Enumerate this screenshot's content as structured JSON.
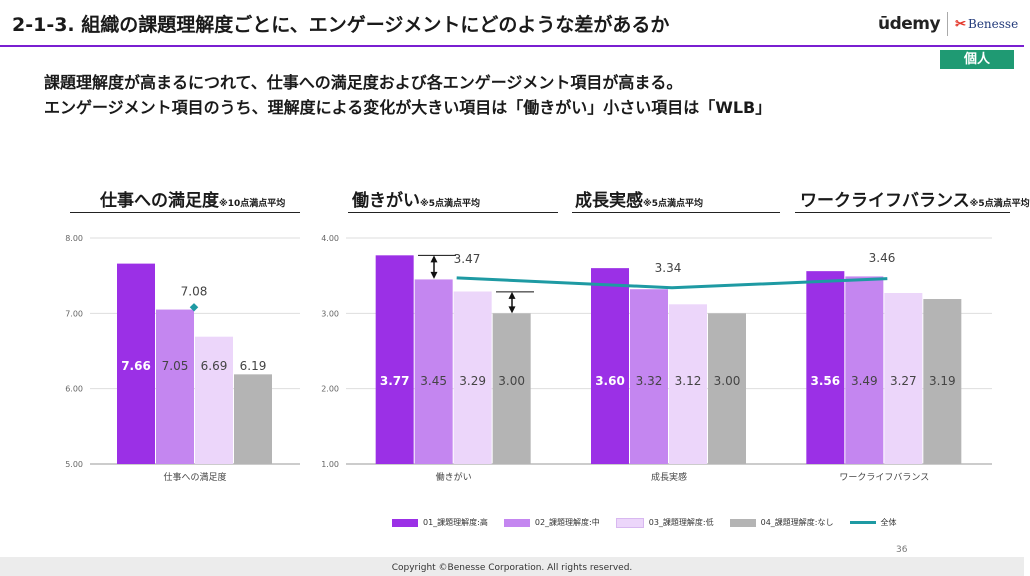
{
  "header": {
    "title": "2-1-3. 組織の課題理解度ごとに、エンゲージメントにどのような差があるか",
    "logo_udemy": "ūdemy",
    "logo_benesse": "Benesse",
    "badge": "個人"
  },
  "lead": {
    "line1": "課題理解度が高まるにつれて、仕事への満足度および各エンゲージメント項目が高まる。",
    "line2": "エンゲージメント項目のうち、理解度による変化が大きい項目は「働きがい」小さい項目は「WLB」"
  },
  "panels": {
    "satisfaction": {
      "title": "仕事への満足度",
      "note": "※10点満点平均"
    },
    "hatarakigai": {
      "title": "働きがい",
      "note": "※5点満点平均"
    },
    "growth": {
      "title": "成長実感",
      "note": "※5点満点平均"
    },
    "wlb": {
      "title": "ワークライフバランス",
      "note": "※5点満点平均"
    }
  },
  "colors": {
    "high": "#9b30e6",
    "mid": "#c486f0",
    "low": "#ecd6fa",
    "none": "#b4b4b4",
    "overall": "#1e9aa3",
    "accent_rule": "#7a1fd1",
    "badge": "#1f9a73"
  },
  "chart_data": [
    {
      "type": "bar",
      "title": "仕事への満足度",
      "categories": [
        "仕事への満足度"
      ],
      "ylim": [
        5.0,
        8.0
      ],
      "yticks": [
        "5.00",
        "6.00",
        "7.00",
        "8.00"
      ],
      "grid": true,
      "series": [
        {
          "name": "01_課題理解度:高",
          "values": [
            7.66
          ],
          "labels": [
            "7.66"
          ]
        },
        {
          "name": "02_課題理解度:中",
          "values": [
            7.05
          ],
          "labels": [
            "7.05"
          ]
        },
        {
          "name": "03_課題理解度:低",
          "values": [
            6.69
          ],
          "labels": [
            "6.69"
          ]
        },
        {
          "name": "04_課題理解度:なし",
          "values": [
            6.19
          ],
          "labels": [
            "6.19"
          ]
        }
      ],
      "overall": {
        "name": "全体",
        "values": [
          7.08
        ],
        "labels": [
          "7.08"
        ]
      }
    },
    {
      "type": "bar",
      "categories": [
        "働きがい",
        "成長実感",
        "ワークライフバランス"
      ],
      "ylim": [
        1.0,
        4.0
      ],
      "yticks": [
        "1.00",
        "2.00",
        "3.00",
        "4.00"
      ],
      "grid": true,
      "series": [
        {
          "name": "01_課題理解度:高",
          "values": [
            3.77,
            3.6,
            3.56
          ],
          "labels": [
            "3.77",
            "3.60",
            "3.56"
          ]
        },
        {
          "name": "02_課題理解度:中",
          "values": [
            3.45,
            3.32,
            3.49
          ],
          "labels": [
            "3.45",
            "3.32",
            "3.49"
          ]
        },
        {
          "name": "03_課題理解度:低",
          "values": [
            3.29,
            3.12,
            3.27
          ],
          "labels": [
            "3.29",
            "3.12",
            "3.27"
          ]
        },
        {
          "name": "04_課題理解度:なし",
          "values": [
            3.0,
            3.0,
            3.19
          ],
          "labels": [
            "3.00",
            "3.00",
            "3.19"
          ]
        }
      ],
      "overall": {
        "name": "全体",
        "values": [
          3.47,
          3.34,
          3.46
        ],
        "labels": [
          "3.47",
          "3.34",
          "3.46"
        ]
      }
    }
  ],
  "legend": [
    {
      "label": "01_課題理解度:高",
      "color": "#9b30e6",
      "kind": "bar"
    },
    {
      "label": "02_課題理解度:中",
      "color": "#c486f0",
      "kind": "bar"
    },
    {
      "label": "03_課題理解度:低",
      "color": "#ecd6fa",
      "kind": "bar"
    },
    {
      "label": "04_課題理解度:なし",
      "color": "#b4b4b4",
      "kind": "bar"
    },
    {
      "label": "全体",
      "color": "#1e9aa3",
      "kind": "line"
    }
  ],
  "footer": {
    "page": "36",
    "copyright": "Copyright ©Benesse Corporation. All rights reserved."
  }
}
